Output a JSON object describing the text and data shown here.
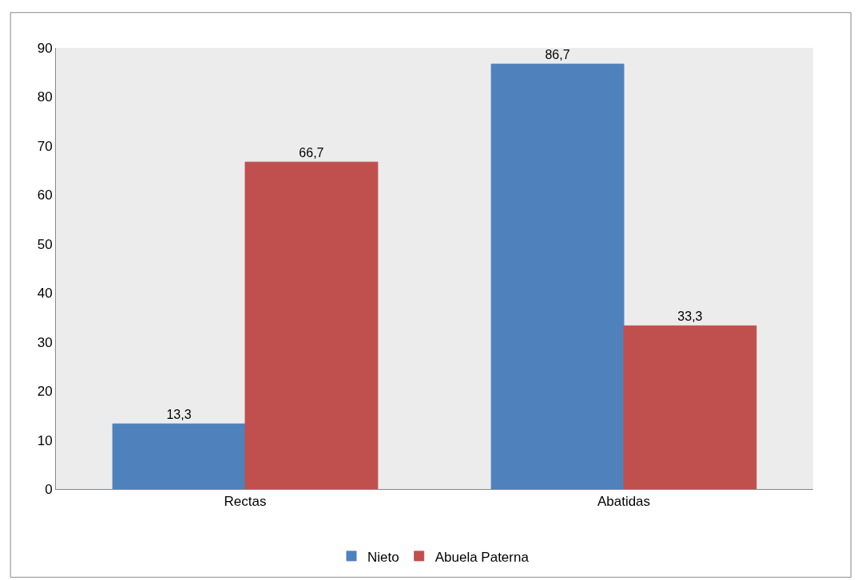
{
  "chart_data": {
    "type": "bar",
    "categories": [
      "Rectas",
      "Abatidas"
    ],
    "series": [
      {
        "name": "Nieto",
        "color": "#4f81bd",
        "values": [
          13.3,
          86.7
        ],
        "value_labels": [
          "13,3",
          "86,7"
        ]
      },
      {
        "name": "Abuela Paterna",
        "color": "#c0504d",
        "values": [
          66.7,
          33.3
        ],
        "value_labels": [
          "66,7",
          "33,3"
        ]
      }
    ],
    "ylim": [
      0,
      90
    ],
    "yticks": [
      0,
      10,
      20,
      30,
      40,
      50,
      60,
      70,
      80,
      90
    ],
    "grid": false,
    "legend": "bottom"
  }
}
